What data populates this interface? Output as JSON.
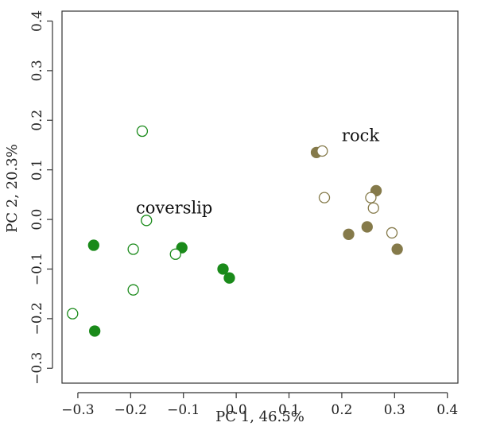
{
  "chart_data": {
    "type": "scatter",
    "xlabel": "PC 1, 46.5%",
    "ylabel": "PC 2, 20.3%",
    "xlim": [
      -0.33,
      0.42
    ],
    "ylim": [
      -0.33,
      0.42
    ],
    "xticks": [
      -0.3,
      -0.2,
      -0.1,
      0.0,
      0.1,
      0.2,
      0.3,
      0.4
    ],
    "xtick_labels": [
      "−0.3",
      "−0.2",
      "−0.1",
      "0.0",
      "0.1",
      "0.2",
      "0.3",
      "0.4"
    ],
    "yticks": [
      -0.3,
      -0.2,
      -0.1,
      0.0,
      0.1,
      0.2,
      0.3,
      0.4
    ],
    "ytick_labels": [
      "−0.3",
      "−0.2",
      "−0.1",
      "0.0",
      "0.1",
      "0.2",
      "0.3",
      "0.4"
    ],
    "grid": false,
    "annotations": [
      {
        "text": "coverslip",
        "x": -0.19,
        "y": 0.012
      },
      {
        "text": "rock",
        "x": 0.2,
        "y": 0.158
      }
    ],
    "series": [
      {
        "color": "#1a8a1a",
        "filled": true,
        "points": [
          [
            -0.27,
            -0.052
          ],
          [
            -0.268,
            -0.225
          ],
          [
            -0.103,
            -0.057
          ],
          [
            -0.025,
            -0.1
          ],
          [
            -0.013,
            -0.118
          ]
        ]
      },
      {
        "color": "#1a8a1a",
        "filled": false,
        "points": [
          [
            -0.31,
            -0.19
          ],
          [
            -0.178,
            0.178
          ],
          [
            -0.17,
            -0.002
          ],
          [
            -0.195,
            -0.06
          ],
          [
            -0.195,
            -0.142
          ],
          [
            -0.115,
            -0.07
          ]
        ]
      },
      {
        "color": "#857a4a",
        "filled": true,
        "points": [
          [
            0.152,
            0.135
          ],
          [
            0.213,
            -0.03
          ],
          [
            0.248,
            -0.015
          ],
          [
            0.265,
            0.058
          ],
          [
            0.305,
            -0.06
          ]
        ]
      },
      {
        "color": "#857a4a",
        "filled": false,
        "points": [
          [
            0.163,
            0.138
          ],
          [
            0.167,
            0.044
          ],
          [
            0.255,
            0.044
          ],
          [
            0.26,
            0.023
          ],
          [
            0.295,
            -0.027
          ]
        ]
      }
    ]
  }
}
